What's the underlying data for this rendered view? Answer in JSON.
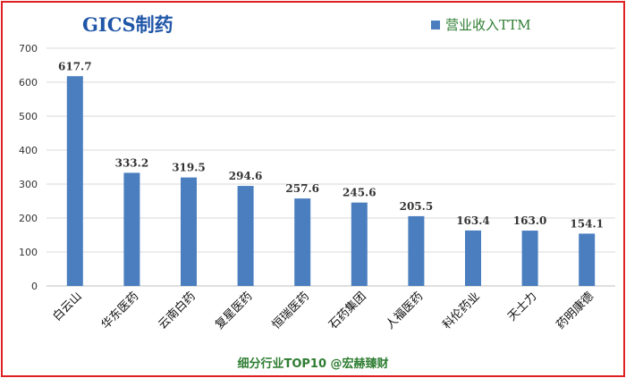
{
  "chart_data": {
    "type": "bar",
    "title": "GICS制药",
    "categories": [
      "白云山",
      "华东医药",
      "云南白药",
      "复星医药",
      "恒瑞医药",
      "石药集团",
      "人福医药",
      "科伦药业",
      "天士力",
      "药明康德"
    ],
    "series": [
      {
        "name": "营业收入TTM",
        "values": [
          617.7,
          333.2,
          319.5,
          294.6,
          257.6,
          245.6,
          205.5,
          163.4,
          163.0,
          154.1
        ],
        "labels": [
          "617.7",
          "333.2",
          "319.5",
          "294.6",
          "257.6",
          "245.6",
          "205.5",
          "163.4",
          "163.0",
          "154.1"
        ]
      }
    ],
    "ylim": [
      0,
      700
    ],
    "yticks": [
      0,
      100,
      200,
      300,
      400,
      500,
      600,
      700
    ],
    "xlabel": "",
    "ylabel": "",
    "grid": "horizontal",
    "legend": "top-right"
  },
  "footer": "细分行业TOP10 @宏赫臻财",
  "colors": {
    "bar": "#4a7ebf",
    "border": "#e02020",
    "title": "#1f56a8",
    "legend_text": "#2e7d32",
    "footer": "#2e7d32",
    "grid": "#d9d9d9"
  }
}
